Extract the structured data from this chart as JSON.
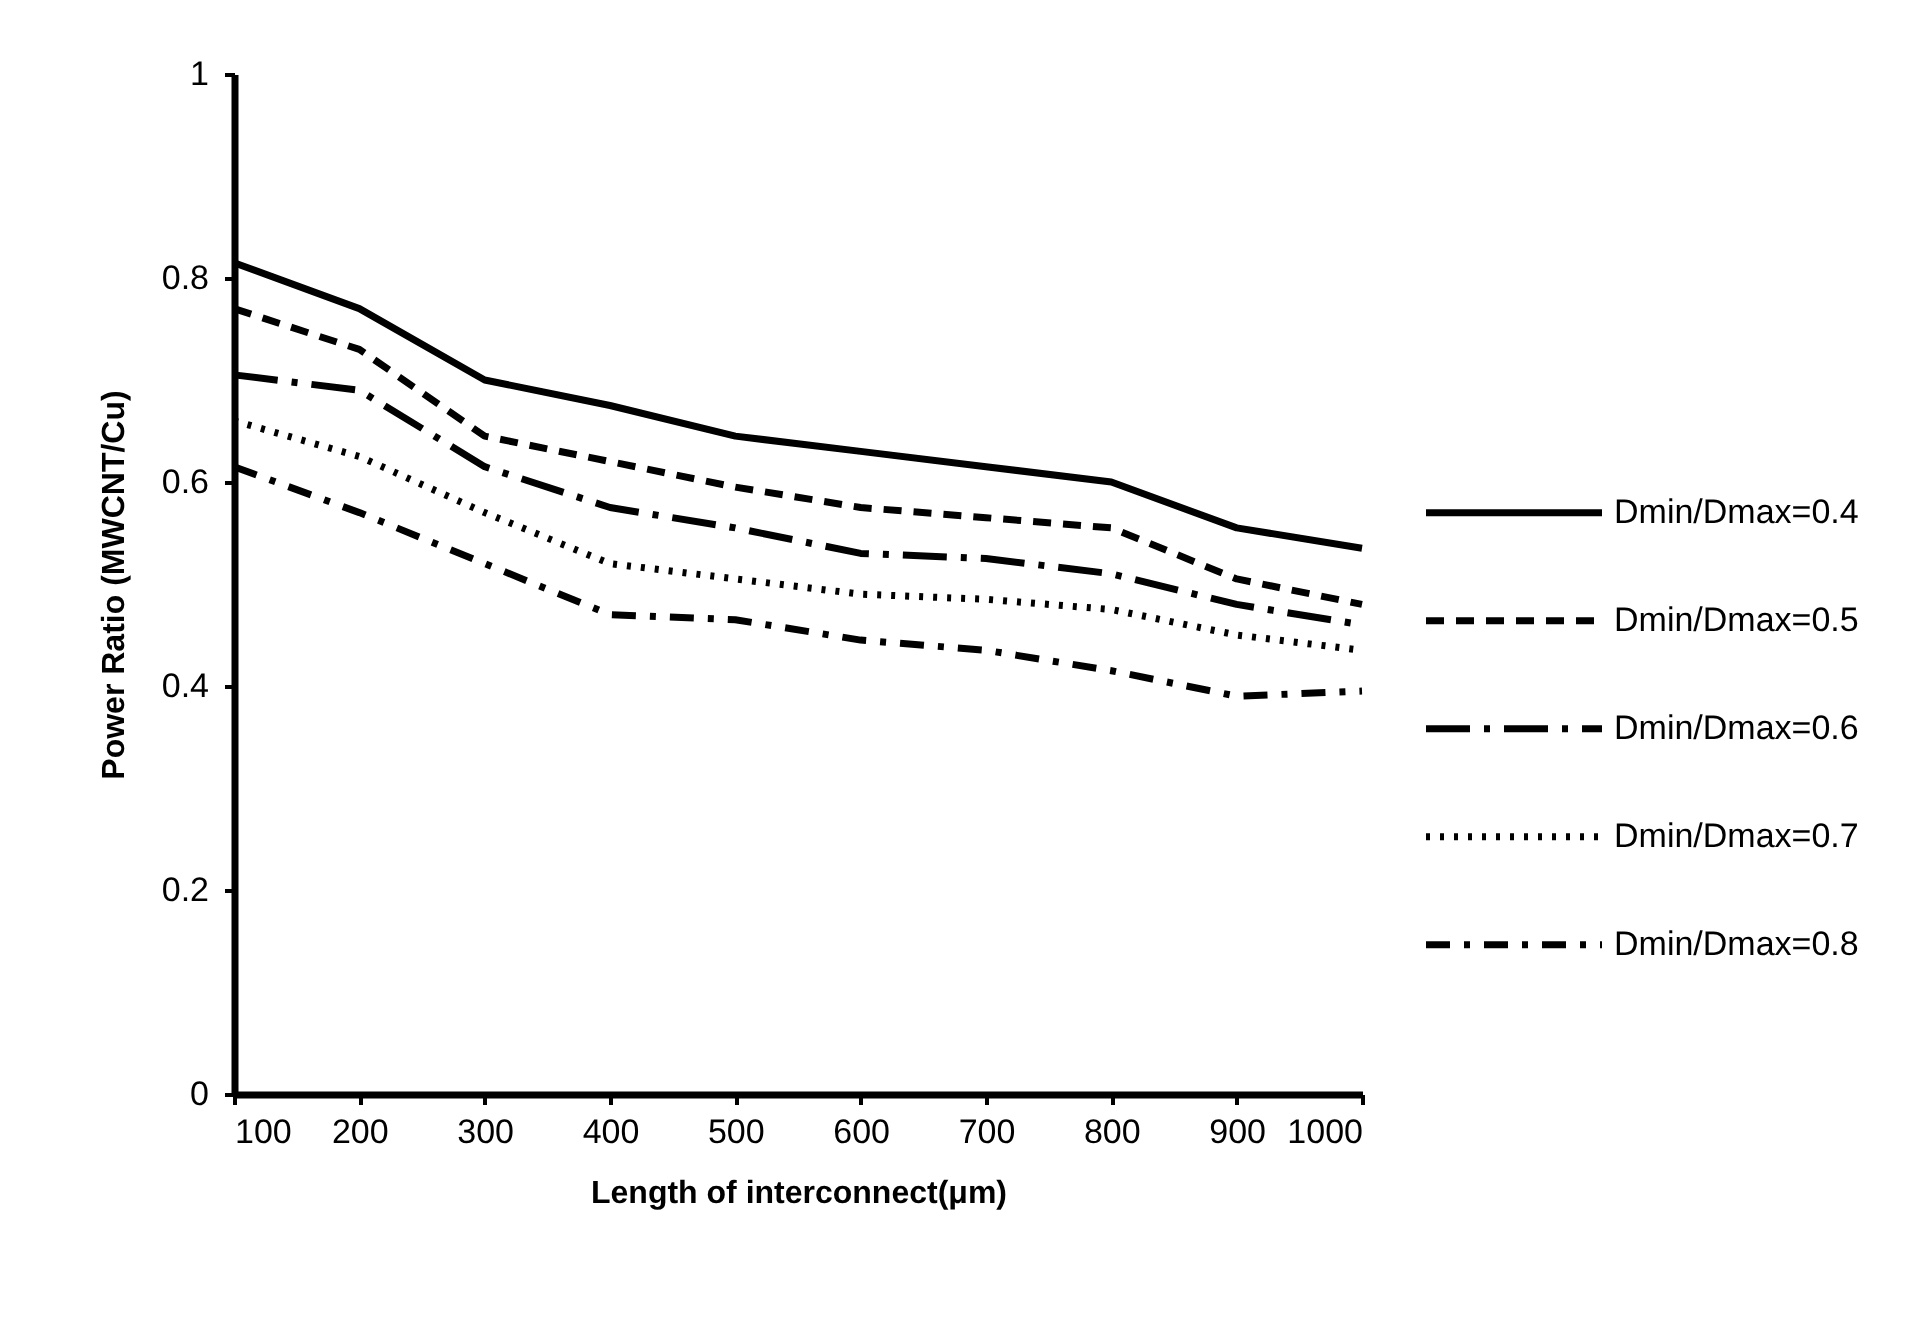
{
  "chart_data": {
    "type": "line",
    "xlabel": "Length of interconnect(μm)",
    "ylabel": "Power Ratio (MWCNT/Cu)",
    "x": [
      100,
      200,
      300,
      400,
      500,
      600,
      700,
      800,
      900,
      1000
    ],
    "xlim": [
      100,
      1000
    ],
    "xticks": [
      100,
      200,
      300,
      400,
      500,
      600,
      700,
      800,
      900,
      1000
    ],
    "ylim": [
      0,
      1
    ],
    "yticks": [
      0,
      0.2,
      0.4,
      0.6,
      0.8,
      1
    ],
    "legend": "right",
    "grid": false,
    "marker": "none",
    "series": [
      {
        "name": "Dmin/Dmax=0.4",
        "color": "#000000",
        "line_style": "solid",
        "values": [
          0.815,
          0.77,
          0.7,
          0.675,
          0.645,
          0.63,
          0.615,
          0.6,
          0.555,
          0.535
        ]
      },
      {
        "name": "Dmin/Dmax=0.5",
        "color": "#000000",
        "line_style": "dashed",
        "values": [
          0.77,
          0.73,
          0.645,
          0.62,
          0.595,
          0.575,
          0.565,
          0.555,
          0.505,
          0.48
        ]
      },
      {
        "name": "Dmin/Dmax=0.6",
        "color": "#000000",
        "line_style": "dashed",
        "values": [
          0.705,
          0.69,
          0.615,
          0.575,
          0.555,
          0.53,
          0.525,
          0.51,
          0.48,
          0.46
        ]
      },
      {
        "name": "Dmin/Dmax=0.7",
        "color": "#000000",
        "line_style": "dotted",
        "values": [
          0.66,
          0.625,
          0.57,
          0.52,
          0.505,
          0.49,
          0.485,
          0.475,
          0.45,
          0.435
        ]
      },
      {
        "name": "Dmin/Dmax=0.8",
        "color": "#000000",
        "line_style": "dashed",
        "values": [
          0.615,
          0.57,
          0.52,
          0.47,
          0.465,
          0.445,
          0.435,
          0.415,
          0.39,
          0.395
        ]
      }
    ]
  }
}
